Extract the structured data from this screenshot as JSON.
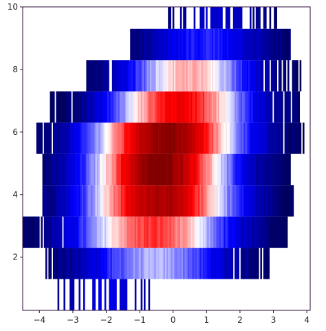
{
  "chart_data": {
    "type": "heatmap",
    "title": "",
    "xlabel": "",
    "ylabel": "",
    "xlim": [
      -4.5,
      4.1
    ],
    "ylim": [
      0.3,
      10
    ],
    "x_ticks": [
      -4,
      -3,
      -2,
      -1,
      0,
      1,
      2,
      3,
      4
    ],
    "y_ticks": [
      2,
      4,
      6,
      8,
      10
    ],
    "x_tick_labels": [
      "−4",
      "−3",
      "−2",
      "−1",
      "0",
      "1",
      "2",
      "3",
      "4"
    ],
    "y_tick_labels": [
      "2",
      "4",
      "6",
      "8",
      "10"
    ],
    "colormap": "seismic",
    "colormap_stops": [
      "#00004c",
      "#0000ff",
      "#ffffff",
      "#ff0000",
      "#800000"
    ],
    "background_color": "#ffffff",
    "grid": false,
    "bins_y": [
      0.3,
      1.3,
      2.3,
      3.3,
      4.3,
      5.3,
      6.3,
      7.3,
      8.3,
      9.3,
      10.0
    ],
    "rows": [
      {
        "y_range": [
          0.3,
          1.3
        ],
        "x_range": [
          -3.5,
          -0.5
        ],
        "center": -2.0,
        "sx": 1.0,
        "peak": 0.22,
        "density": 0.35
      },
      {
        "y_range": [
          1.3,
          2.3
        ],
        "x_range": [
          -3.8,
          2.9
        ],
        "center": -0.5,
        "sx": 1.55,
        "peak": 0.42,
        "density": 0.82
      },
      {
        "y_range": [
          2.3,
          3.3
        ],
        "x_range": [
          -4.5,
          3.4
        ],
        "center": -0.6,
        "sx": 1.6,
        "peak": 0.7,
        "density": 0.9
      },
      {
        "y_range": [
          3.3,
          4.3
        ],
        "x_range": [
          -3.9,
          3.6
        ],
        "center": -0.4,
        "sx": 1.55,
        "peak": 0.92,
        "density": 0.98
      },
      {
        "y_range": [
          4.3,
          5.3
        ],
        "x_range": [
          -3.9,
          3.5
        ],
        "center": -0.4,
        "sx": 1.45,
        "peak": 1.0,
        "density": 0.97
      },
      {
        "y_range": [
          5.3,
          6.3
        ],
        "x_range": [
          -4.1,
          3.9
        ],
        "center": -0.2,
        "sx": 1.55,
        "peak": 0.98,
        "density": 0.88
      },
      {
        "y_range": [
          6.3,
          7.3
        ],
        "x_range": [
          -3.7,
          3.8
        ],
        "center": 0.2,
        "sx": 1.45,
        "peak": 0.78,
        "density": 0.82
      },
      {
        "y_range": [
          7.3,
          8.3
        ],
        "x_range": [
          -2.6,
          3.9
        ],
        "center": 0.5,
        "sx": 1.35,
        "peak": 0.58,
        "density": 0.78
      },
      {
        "y_range": [
          8.3,
          9.3
        ],
        "x_range": [
          -1.3,
          3.5
        ],
        "center": 1.0,
        "sx": 1.3,
        "peak": 0.28,
        "density": 0.95
      },
      {
        "y_range": [
          9.3,
          10.0
        ],
        "x_range": [
          -0.2,
          3.2
        ],
        "center": 1.3,
        "sx": 1.0,
        "peak": 0.18,
        "density": 0.5
      }
    ]
  }
}
